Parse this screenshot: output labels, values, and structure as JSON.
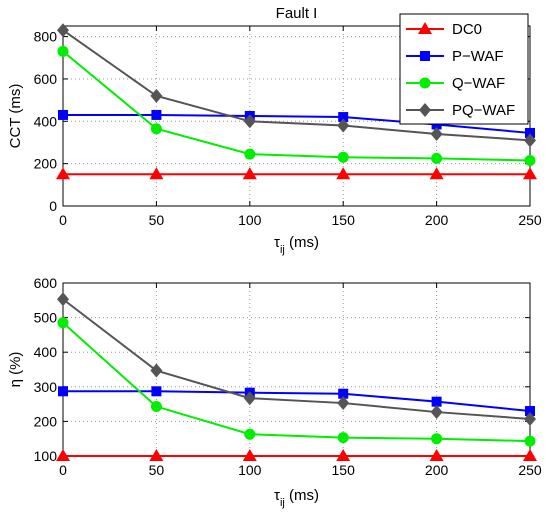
{
  "chart_data": [
    {
      "type": "line",
      "title": "Fault I",
      "xlabel": "τij (ms)",
      "ylabel": "CCT (ms)",
      "x": [
        0,
        50,
        100,
        150,
        200,
        250
      ],
      "xlim": [
        0,
        250
      ],
      "ylim": [
        0,
        850
      ],
      "xticks": [
        0,
        50,
        100,
        150,
        200,
        250
      ],
      "yticks": [
        0,
        200,
        400,
        600,
        800
      ],
      "grid": true,
      "legend_position": "top-right",
      "series": [
        {
          "name": "DC0",
          "color": "#ff0000",
          "marker": "triangle",
          "values": [
            150,
            150,
            150,
            150,
            150,
            150
          ]
        },
        {
          "name": "P−WAF",
          "color": "#0000ff",
          "marker": "square",
          "values": [
            430,
            430,
            425,
            420,
            385,
            345
          ]
        },
        {
          "name": "Q−WAF",
          "color": "#00ee00",
          "marker": "circle",
          "values": [
            730,
            365,
            245,
            230,
            225,
            215
          ]
        },
        {
          "name": "PQ−WAF",
          "color": "#555555",
          "marker": "diamond",
          "values": [
            830,
            520,
            400,
            380,
            340,
            310
          ]
        }
      ]
    },
    {
      "type": "line",
      "title": "",
      "xlabel": "τij (ms)",
      "ylabel": "η (%)",
      "x": [
        0,
        50,
        100,
        150,
        200,
        250
      ],
      "xlim": [
        0,
        250
      ],
      "ylim": [
        100,
        600
      ],
      "xticks": [
        0,
        50,
        100,
        150,
        200,
        250
      ],
      "yticks": [
        100,
        200,
        300,
        400,
        500,
        600
      ],
      "grid": true,
      "series": [
        {
          "color": "#ff0000",
          "marker": "triangle",
          "values": [
            100,
            100,
            100,
            100,
            100,
            100
          ]
        },
        {
          "color": "#0000ff",
          "marker": "square",
          "values": [
            287,
            287,
            283,
            280,
            257,
            230
          ]
        },
        {
          "color": "#00ee00",
          "marker": "circle",
          "values": [
            485,
            243,
            163,
            153,
            150,
            143
          ]
        },
        {
          "color": "#555555",
          "marker": "diamond",
          "values": [
            553,
            347,
            267,
            253,
            227,
            207
          ]
        }
      ]
    }
  ]
}
